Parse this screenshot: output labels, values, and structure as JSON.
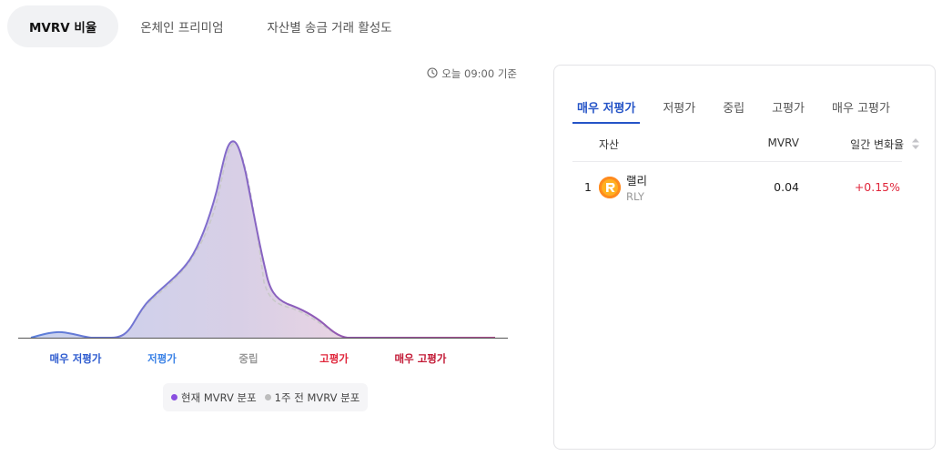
{
  "top_tabs": [
    {
      "label": "MVRV 비율",
      "active": true
    },
    {
      "label": "온체인 프리미엄",
      "active": false
    },
    {
      "label": "자산별 송금 거래 활성도",
      "active": false
    }
  ],
  "timestamp": "오늘 09:00 기준",
  "zone_labels": [
    {
      "label": "매우 저평가",
      "color": "#2d5bcf"
    },
    {
      "label": "저평가",
      "color": "#3b82e6"
    },
    {
      "label": "중립",
      "color": "#9a9a9a"
    },
    {
      "label": "고평가",
      "color": "#e0263b"
    },
    {
      "label": "매우 고평가",
      "color": "#c21834"
    }
  ],
  "legend": {
    "current": "현재 MVRV 분포",
    "week_ago": "1주 전 MVRV 분포",
    "current_color": "#8a4fe0",
    "week_ago_color": "#bdbdbd"
  },
  "colors": {
    "accent": "#2554c7",
    "positive_change": "#e0263b",
    "curve": "#8e5bb8"
  },
  "panel": {
    "tabs": [
      {
        "label": "매우 저평가",
        "active": true
      },
      {
        "label": "저평가",
        "active": false
      },
      {
        "label": "중립",
        "active": false
      },
      {
        "label": "고평가",
        "active": false
      },
      {
        "label": "매우 고평가",
        "active": false
      }
    ],
    "columns": {
      "asset": "자산",
      "mvrv": "MVRV",
      "change": "일간 변화율"
    },
    "rows": [
      {
        "rank": "1",
        "name": "랠리",
        "symbol": "RLY",
        "mvrv": "0.04",
        "change": "+0.15%",
        "icon": "rally-logo-icon"
      }
    ]
  }
}
